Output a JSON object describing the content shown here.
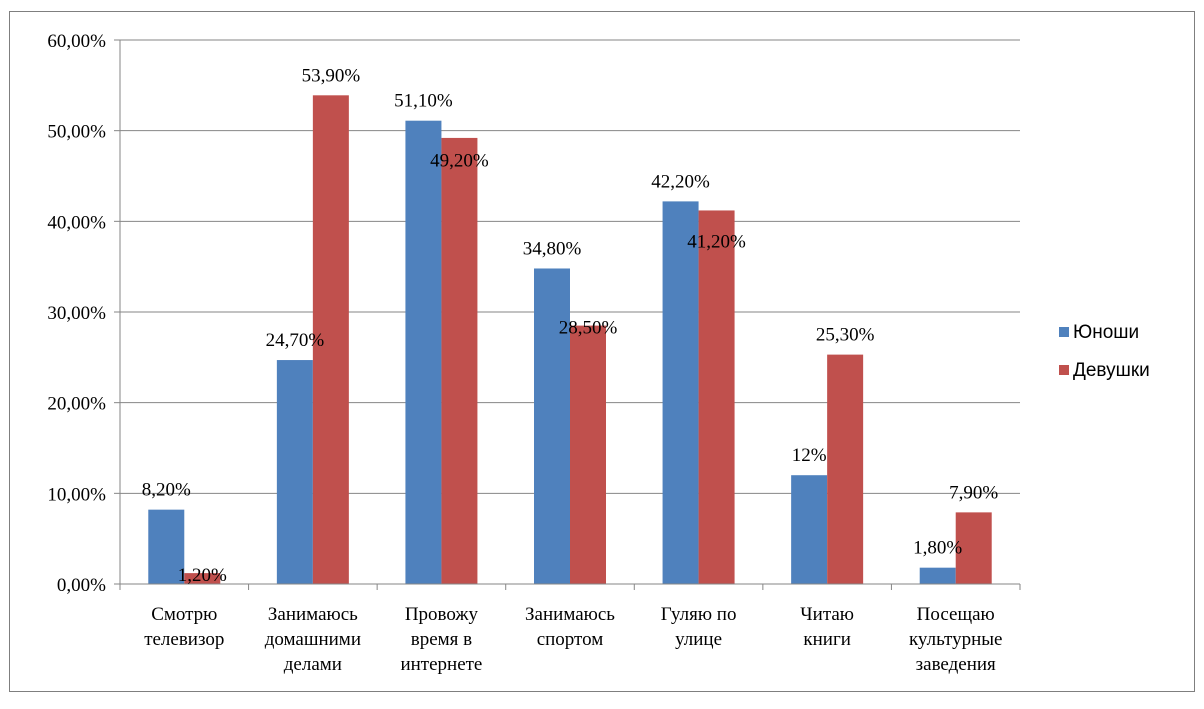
{
  "chart_data": {
    "type": "bar",
    "categories": [
      [
        "Смотрю",
        "телевизор"
      ],
      [
        "Занимаюсь",
        "домашними",
        "делами"
      ],
      [
        "Провожу",
        "время в",
        "интернете"
      ],
      [
        "Занимаюсь",
        "спортом"
      ],
      [
        "Гуляю по",
        "улице"
      ],
      [
        "Читаю",
        "книги"
      ],
      [
        "Посещаю",
        "культурные",
        "заведения"
      ]
    ],
    "series": [
      {
        "name": "Юноши",
        "color": "#4f81bd",
        "values": [
          8.2,
          24.7,
          51.1,
          34.8,
          42.2,
          12.0,
          1.8
        ],
        "labels": [
          "8,20%",
          "24,70%",
          "51,10%",
          "34,80%",
          "42,20%",
          "12%",
          "1,80%"
        ]
      },
      {
        "name": "Девушки",
        "color": "#c0504d",
        "values": [
          1.2,
          53.9,
          49.2,
          28.5,
          41.2,
          25.3,
          7.9
        ],
        "labels": [
          "1,20%",
          "53,90%",
          "49,20%",
          "28,50%",
          "41,20%",
          "25,30%",
          "7,90%"
        ]
      }
    ],
    "ylim": [
      0,
      60
    ],
    "yticks": [
      0,
      10,
      20,
      30,
      40,
      50,
      60
    ],
    "ytick_labels": [
      "0,00%",
      "10,00%",
      "20,00%",
      "30,00%",
      "40,00%",
      "50,00%",
      "60,00%"
    ],
    "grid": true,
    "legend_position": "right",
    "title": "",
    "xlabel": "",
    "ylabel": ""
  }
}
